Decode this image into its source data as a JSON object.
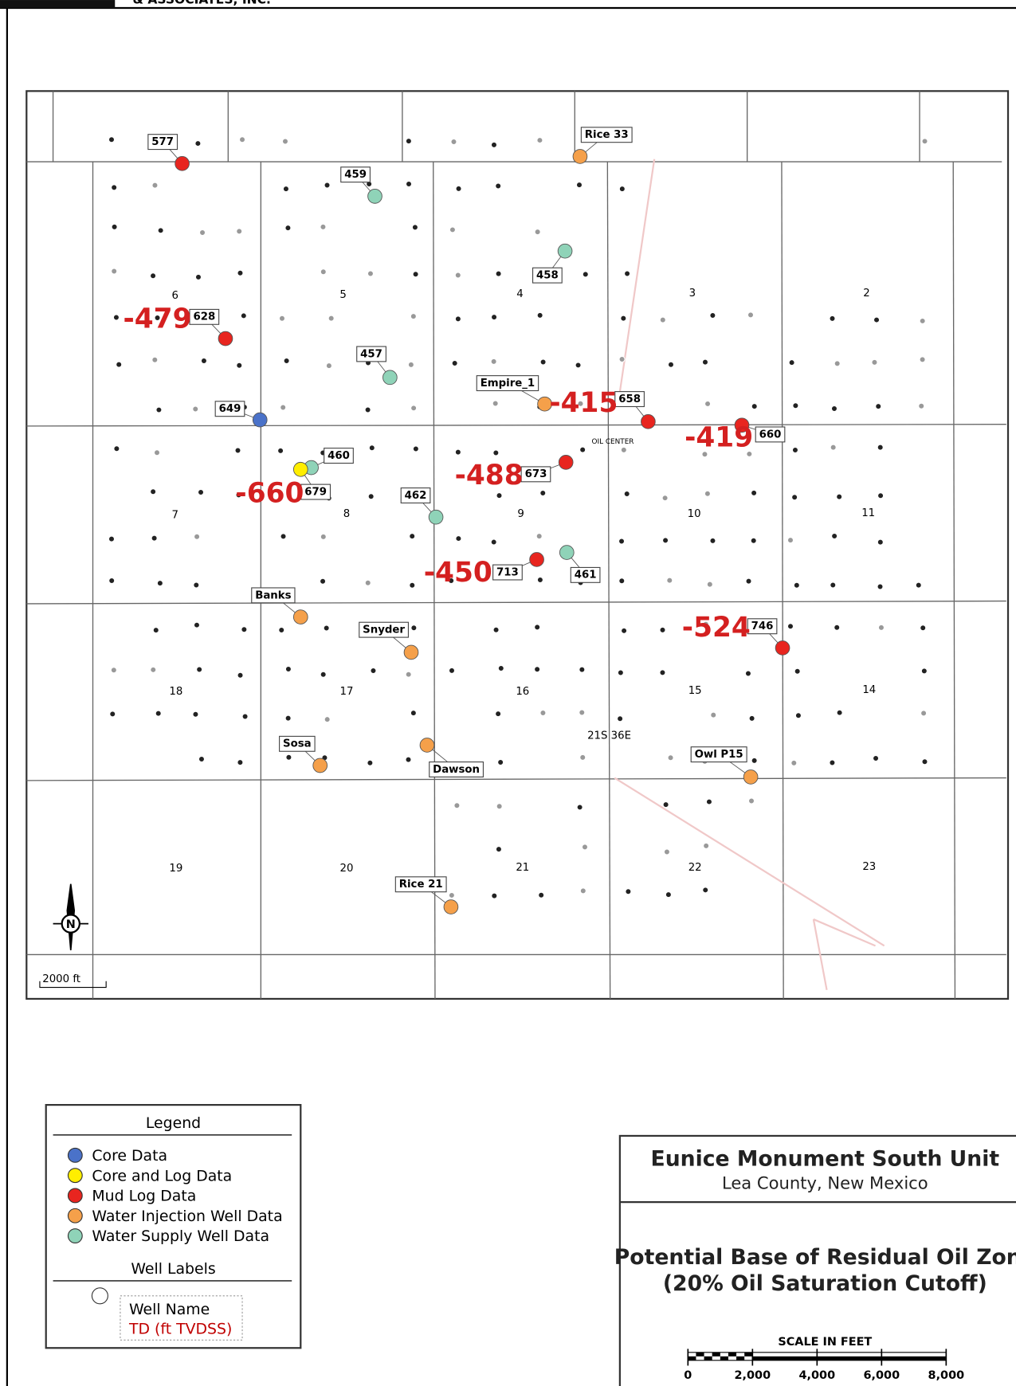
{
  "header": {
    "company": "& ASSOCIATES, INC."
  },
  "map": {
    "sections": [
      "6",
      "5",
      "4",
      "3",
      "2",
      "7",
      "8",
      "9",
      "10",
      "11",
      "18",
      "17",
      "16",
      "15",
      "14",
      "19",
      "20",
      "21",
      "22",
      "23"
    ],
    "township": "21S 36E",
    "town": "OIL CENTER",
    "north": "N",
    "scale_label": "2000 ft",
    "wells": [
      {
        "name": "577",
        "color": "#e8251f"
      },
      {
        "name": "628",
        "color": "#e8251f",
        "td": -479
      },
      {
        "name": "649",
        "color": "#4a72c9"
      },
      {
        "name": "459",
        "color": "#8fd3b8"
      },
      {
        "name": "458",
        "color": "#8fd3b8"
      },
      {
        "name": "457",
        "color": "#8fd3b8"
      },
      {
        "name": "Empire_1",
        "color": "#f5a04a"
      },
      {
        "name": "658",
        "color": "#e8251f",
        "td": -415
      },
      {
        "name": "660",
        "color": "#e8251f",
        "td": -419
      },
      {
        "name": "460",
        "color": "#8fd3b8"
      },
      {
        "name": "679",
        "color": "#ffee00",
        "td": -660
      },
      {
        "name": "462",
        "color": "#8fd3b8"
      },
      {
        "name": "673",
        "color": "#e8251f",
        "td": -488
      },
      {
        "name": "713",
        "color": "#e8251f",
        "td": -450
      },
      {
        "name": "461",
        "color": "#8fd3b8"
      },
      {
        "name": "746",
        "color": "#e8251f",
        "td": -524
      },
      {
        "name": "Banks",
        "color": "#f5a04a"
      },
      {
        "name": "Snyder",
        "color": "#f5a04a"
      },
      {
        "name": "Sosa",
        "color": "#f5a04a"
      },
      {
        "name": "Dawson",
        "color": "#f5a04a"
      },
      {
        "name": "Owl P15",
        "color": "#f5a04a"
      },
      {
        "name": "Rice 21",
        "color": "#f5a04a"
      },
      {
        "name": "Rice 33",
        "color": "#f5a04a"
      }
    ]
  },
  "legend": {
    "title": "Legend",
    "items": [
      {
        "label": "Core Data",
        "color": "#4a72c9"
      },
      {
        "label": "Core and Log Data",
        "color": "#ffee00"
      },
      {
        "label": "Mud Log Data",
        "color": "#e8251f"
      },
      {
        "label": "Water Injection Well Data",
        "color": "#f5a04a"
      },
      {
        "label": "Water Supply Well Data",
        "color": "#8fd3b8"
      }
    ],
    "labels_title": "Well Labels",
    "sample_name": "Well Name",
    "sample_td": "TD (ft TVDSS)"
  },
  "title_block": {
    "title": "Eunice Monument South Unit",
    "location": "Lea County, New Mexico",
    "subtitle": "Potential Base of Residual Oil Zone",
    "note": "(20% Oil Saturation Cutoff)",
    "scale_title": "SCALE IN FEET",
    "scale_ticks": [
      0,
      {
        "value": 2000,
        "label": "2,000"
      },
      {
        "value": 4000,
        "label": "4,000"
      },
      {
        "value": 6000,
        "label": "6,000"
      },
      {
        "value": 8000,
        "label": "8,000"
      }
    ]
  }
}
